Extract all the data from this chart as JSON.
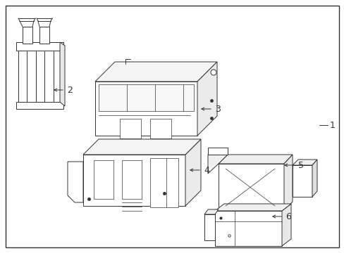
{
  "bg_color": "#ffffff",
  "line_color": "#333333",
  "border_color": "#333333",
  "label_color": "#333333",
  "fig_width": 4.89,
  "fig_height": 3.6,
  "dpi": 100,
  "label_fontsize": 9,
  "lw": 0.7,
  "lw_border": 1.0
}
